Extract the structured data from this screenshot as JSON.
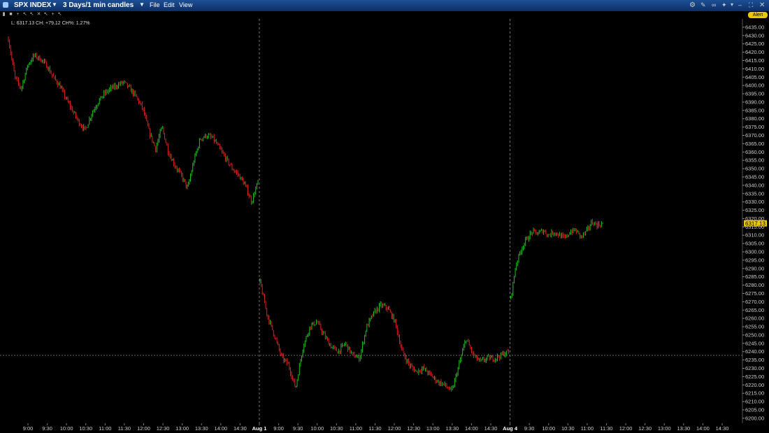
{
  "window": {
    "symbol": "SPX INDEX",
    "period": "3 Days/1 min candles",
    "menus": [
      "File",
      "Edit",
      "View"
    ],
    "alert_label": "Alert"
  },
  "toolbar": {
    "icons": [
      "bar-chart-icon",
      "lock-icon",
      "crosshair-icon",
      "pointer-icon",
      "pointer-icon",
      "delete-icon",
      "pointer-icon",
      "add-icon",
      "pointer-icon"
    ]
  },
  "colors": {
    "up": "#1ec21e",
    "down": "#e02020",
    "background": "#000000",
    "grid": "#333333",
    "last_price_bg": "#e8c800"
  },
  "chart_data": {
    "type": "candlestick",
    "info_label": "L: 6317.13 CH: +79.12 CH%: 1.27%",
    "last_price_label": "6317.13",
    "ylim": [
      6197,
      6440
    ],
    "y_ticks": [
      6200,
      6205,
      6210,
      6215,
      6220,
      6225,
      6230,
      6235,
      6240,
      6245,
      6250,
      6255,
      6260,
      6265,
      6270,
      6275,
      6280,
      6285,
      6290,
      6295,
      6300,
      6305,
      6310,
      6315,
      6320,
      6325,
      6330,
      6335,
      6340,
      6345,
      6350,
      6355,
      6360,
      6365,
      6370,
      6375,
      6380,
      6385,
      6390,
      6395,
      6400,
      6405,
      6410,
      6415,
      6420,
      6425,
      6430,
      6435
    ],
    "x_ticks": [
      "9:00",
      "9:30",
      "10:00",
      "10:30",
      "11:00",
      "11:30",
      "12:00",
      "12:30",
      "13:00",
      "13:30",
      "14:00",
      "14:30",
      "Aug 1",
      "9:00",
      "9:30",
      "10:00",
      "10:30",
      "11:00",
      "11:30",
      "12:00",
      "12:30",
      "13:00",
      "13:30",
      "14:00",
      "14:30",
      "Aug 4",
      "9:30",
      "10:00",
      "10:30",
      "11:00",
      "11:30",
      "12:00",
      "12:30",
      "13:00",
      "13:30",
      "14:00",
      "14:30"
    ],
    "sessions": [
      {
        "label": "",
        "points": [
          6428,
          6405,
          6398,
          6412,
          6418,
          6416,
          6412,
          6405,
          6400,
          6392,
          6385,
          6378,
          6373,
          6383,
          6390,
          6395,
          6398,
          6400,
          6402,
          6398,
          6393,
          6386,
          6372,
          6362,
          6375,
          6360,
          6352,
          6346,
          6338,
          6355,
          6368,
          6370,
          6368,
          6362,
          6356,
          6350,
          6346,
          6340,
          6330,
          6342
        ]
      },
      {
        "label": "Aug 1",
        "points": [
          6282,
          6262,
          6250,
          6237,
          6232,
          6218,
          6242,
          6255,
          6258,
          6250,
          6243,
          6240,
          6245,
          6238,
          6236,
          6255,
          6263,
          6268,
          6266,
          6258,
          6240,
          6232,
          6228,
          6230,
          6226,
          6222,
          6220,
          6216,
          6232,
          6248,
          6238,
          6234,
          6236,
          6236,
          6238,
          6240
        ]
      },
      {
        "label": "Aug 4",
        "points": [
          6272,
          6293,
          6302,
          6308,
          6312,
          6311,
          6313,
          6310,
          6312,
          6310,
          6308,
          6312,
          6313,
          6309,
          6312,
          6318,
          6316,
          6317
        ]
      }
    ]
  }
}
